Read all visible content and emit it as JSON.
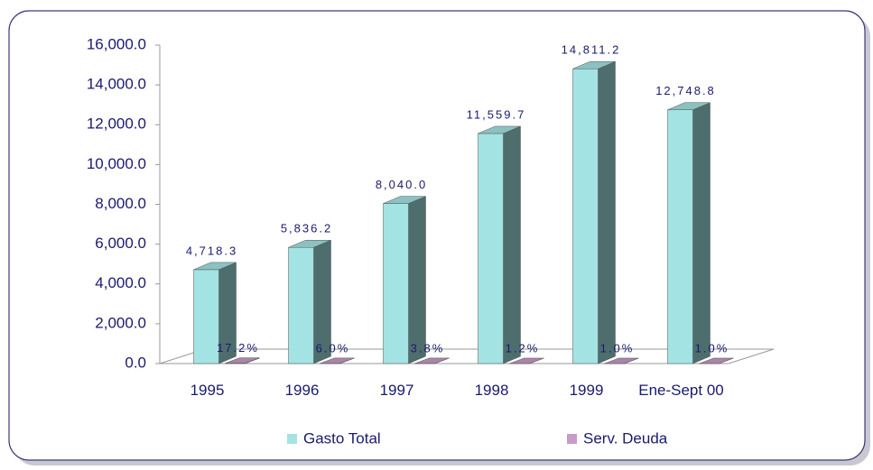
{
  "chart_data": {
    "type": "bar3d",
    "categories": [
      "1995",
      "1996",
      "1997",
      "1998",
      "1999",
      "Ene-Sept 00"
    ],
    "series": [
      {
        "name": "Gasto Total",
        "color": "#a3e3e3",
        "values": [
          4718.3,
          5836.2,
          8040.0,
          11559.7,
          14811.2,
          12748.8
        ],
        "value_labels": [
          "4,718.3",
          "5,836.2",
          "8,040.0",
          "11,559.7",
          "14,811.2",
          "12,748.8"
        ]
      },
      {
        "name": "Serv. Deuda",
        "color": "#c89bc8",
        "values": [
          17.2,
          6.0,
          3.8,
          1.2,
          1.0,
          1.0
        ],
        "value_labels": [
          "17.2%",
          "6.0%",
          "3.8%",
          "1.2%",
          "1.0%",
          "1.0%"
        ]
      }
    ],
    "ylim": [
      0,
      16000
    ],
    "yticks": [
      {
        "value": 0,
        "label": "0.0"
      },
      {
        "value": 2000,
        "label": "2,000.0"
      },
      {
        "value": 4000,
        "label": "4,000.0"
      },
      {
        "value": 6000,
        "label": "6,000.0"
      },
      {
        "value": 8000,
        "label": "8,000.0"
      },
      {
        "value": 10000,
        "label": "10,000.0"
      },
      {
        "value": 12000,
        "label": "12,000.0"
      },
      {
        "value": 14000,
        "label": "14,000.0"
      },
      {
        "value": 16000,
        "label": "16,000.0"
      }
    ],
    "legend": "bottom"
  }
}
